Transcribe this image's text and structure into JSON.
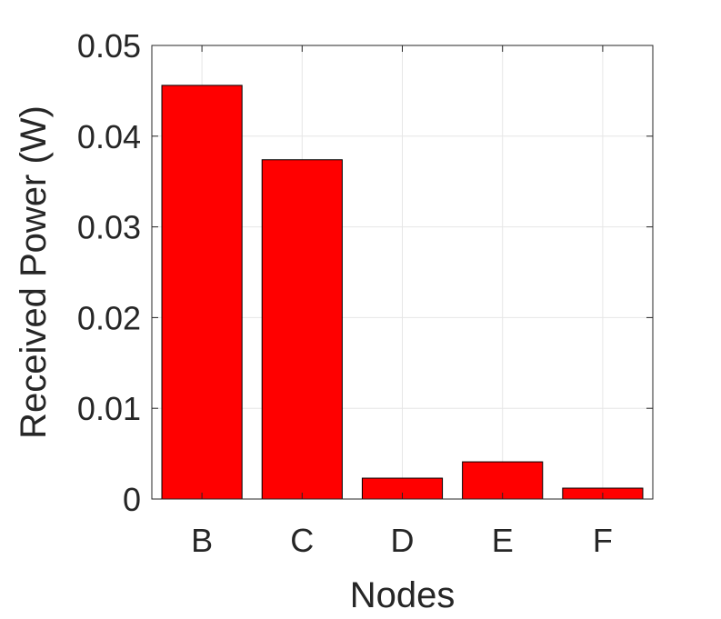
{
  "chart_data": {
    "type": "bar",
    "title": "",
    "xlabel": "Nodes",
    "ylabel": "Received Power (W)",
    "categories": [
      "B",
      "C",
      "D",
      "E",
      "F"
    ],
    "values": [
      0.0456,
      0.0374,
      0.0023,
      0.0041,
      0.0012
    ],
    "ylim": [
      0,
      0.05
    ],
    "yticks": [
      0,
      0.01,
      0.02,
      0.03,
      0.04,
      0.05
    ],
    "ytick_labels": [
      "0",
      "0.01",
      "0.02",
      "0.03",
      "0.04",
      "0.05"
    ],
    "grid": true,
    "bar_color": "#ff0000",
    "bar_edge_color": "#000000",
    "grid_color": "#e6e6e6",
    "axis_color": "#262626"
  }
}
